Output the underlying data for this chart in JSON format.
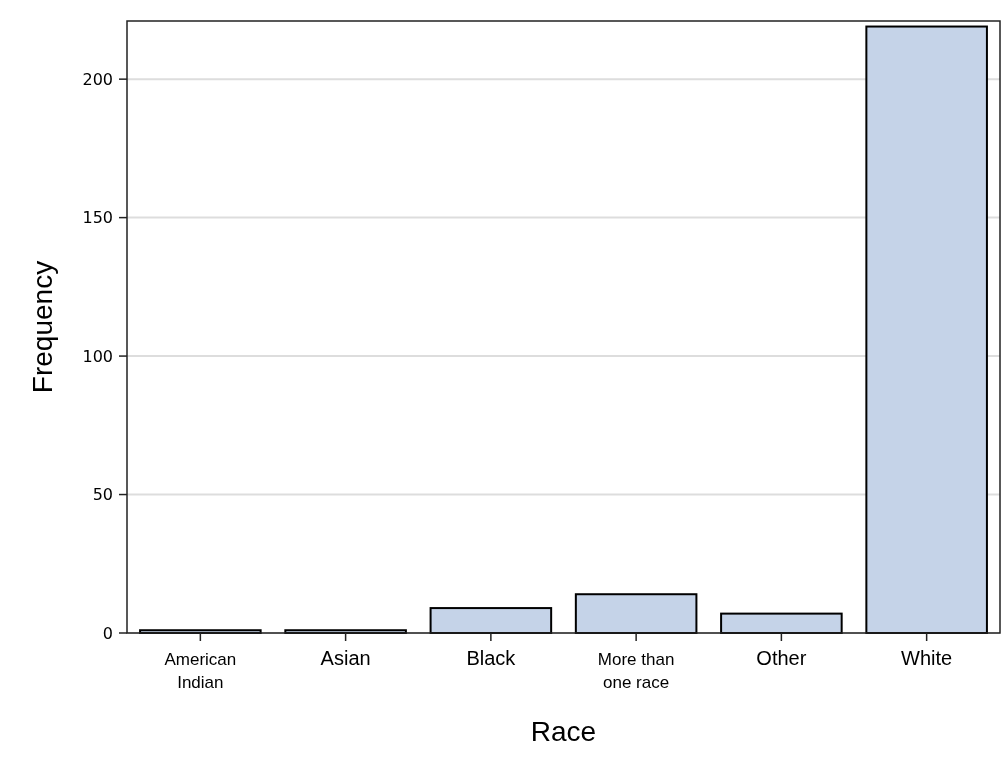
{
  "chart_data": {
    "type": "bar",
    "xlabel": "Race",
    "ylabel": "Frequency",
    "categories": [
      "American Indian",
      "Asian",
      "Black",
      "More than one race",
      "Other",
      "White"
    ],
    "values": [
      1,
      1,
      9,
      14,
      7,
      219
    ],
    "color": "#c5d3e8",
    "ylim": [
      0,
      221
    ],
    "yticks": [
      0,
      50,
      100,
      150,
      200
    ],
    "grid": "y"
  }
}
